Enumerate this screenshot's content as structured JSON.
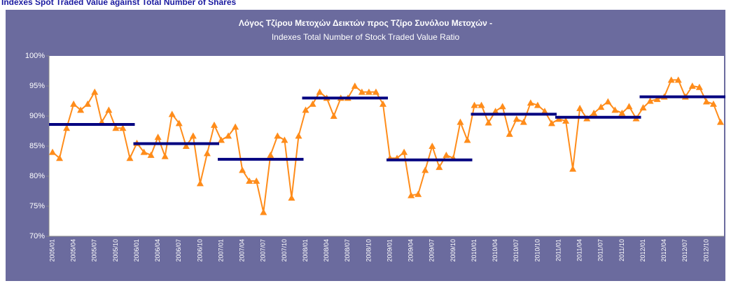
{
  "header": "Indexes Spot Traded Value against Total Number of Shares",
  "chart_data": {
    "type": "line",
    "title": "Λόγος Τζίρου Μετοχών Δεικτών προς Τζίρο Συνόλου Μετοχών -",
    "subtitle": "Indexes Total Number of Stock Traded Value Ratio",
    "categories": [
      "2005/01",
      null,
      null,
      "2005/04",
      null,
      null,
      "2005/07",
      null,
      null,
      "2005/10",
      null,
      null,
      "2006/01",
      null,
      null,
      "2006/04",
      null,
      null,
      "2006/07",
      null,
      null,
      "2006/10",
      null,
      null,
      "2007/01",
      null,
      null,
      "2007/04",
      null,
      null,
      "2007/07",
      null,
      null,
      "2007/10",
      null,
      null,
      "2008/01",
      null,
      null,
      "2008/04",
      null,
      null,
      "2008/07",
      null,
      null,
      "2008/10",
      null,
      null,
      "2009/01",
      null,
      null,
      "2009/04",
      null,
      null,
      "2009/07",
      null,
      null,
      "2009/10",
      null,
      null,
      "2010/01",
      null,
      null,
      "2010/04",
      null,
      null,
      "2010/07",
      null,
      null,
      "2010/10",
      null,
      null,
      "2011/01",
      null,
      null,
      "2011/04",
      null,
      null,
      "2011/07",
      null,
      null,
      "2011/10",
      null,
      null,
      "2012/01",
      null,
      null,
      "2012/04",
      null,
      null,
      "2012/07",
      null,
      null,
      "2012/10",
      null,
      null
    ],
    "series": [
      {
        "color": "#ff8c1a",
        "values": [
          84,
          83,
          88,
          92,
          91,
          92,
          94,
          89,
          91,
          88,
          88,
          83,
          85.5,
          84,
          83.5,
          86.5,
          83.3,
          90.3,
          88.8,
          85,
          86.7,
          78.8,
          83.8,
          88.5,
          86,
          86.7,
          88.2,
          81,
          79.2,
          79.2,
          74,
          83.5,
          86.7,
          86,
          76.4,
          86.7,
          91,
          92,
          94,
          93,
          90,
          93,
          93,
          95,
          94,
          94,
          94,
          92,
          83,
          83,
          84,
          76.8,
          77,
          81,
          85,
          81.5,
          83.5,
          83,
          89,
          86,
          91.8,
          91.8,
          88.9,
          90.8,
          91.6,
          87,
          89.5,
          89,
          92.2,
          91.8,
          90.8,
          88.8,
          89.5,
          89.2,
          81.2,
          91.3,
          89.6,
          90.5,
          91.5,
          92.4,
          91,
          90.5,
          91.6,
          89.6,
          91.4,
          92.5,
          92.8,
          93.2,
          96,
          96,
          93.2,
          95,
          94.8,
          92.4,
          92,
          89
        ]
      }
    ],
    "averages": {
      "color": "#000080",
      "values": [
        88.6,
        85.4,
        82.8,
        93.0,
        82.7,
        90.3,
        89.8,
        93.2
      ]
    },
    "ylim": [
      70,
      100
    ],
    "yticks": [
      {
        "value": 70,
        "label": "70%"
      },
      {
        "value": 75,
        "label": "75%"
      },
      {
        "value": 80,
        "label": "80%"
      },
      {
        "value": 85,
        "label": "85%"
      },
      {
        "value": 90,
        "label": "90%"
      },
      {
        "value": 95,
        "label": "95%"
      },
      {
        "value": 100,
        "label": "100%"
      }
    ],
    "grid": false
  }
}
